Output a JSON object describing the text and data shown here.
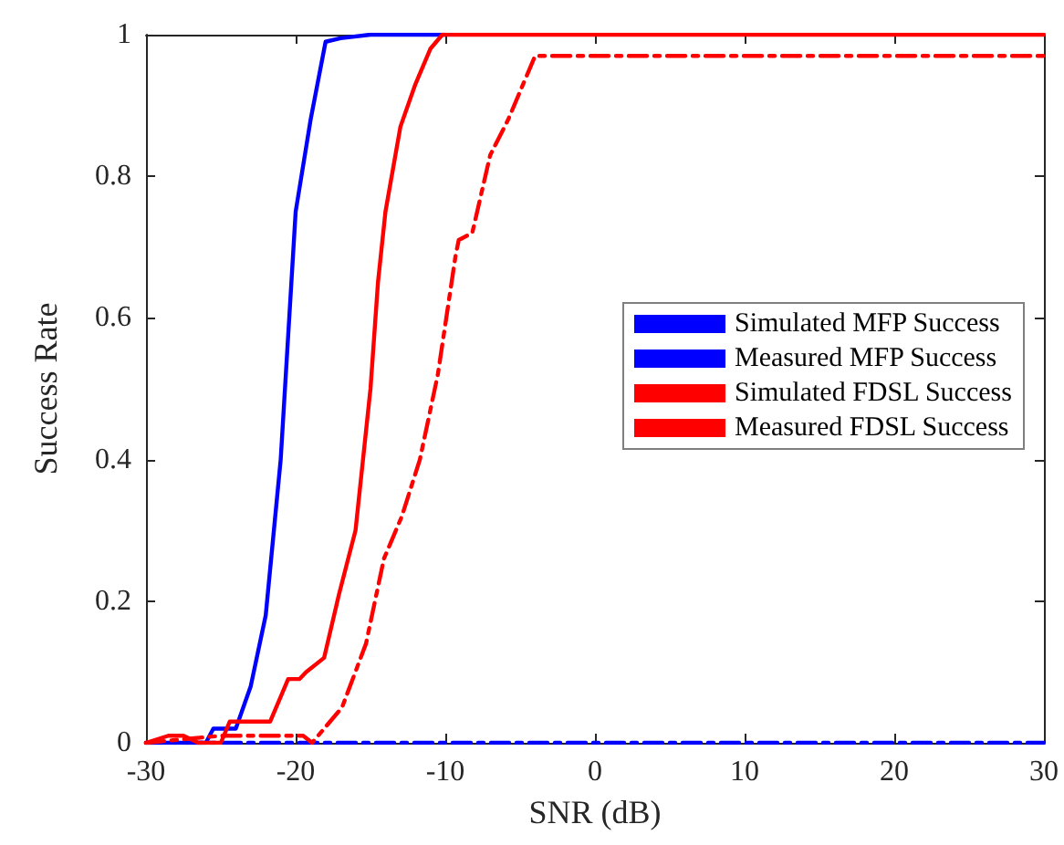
{
  "chart_data": {
    "type": "line",
    "xlabel": "SNR (dB)",
    "ylabel": "Success Rate",
    "xlim": [
      -30,
      30
    ],
    "ylim": [
      0,
      1
    ],
    "xticks": [
      -30,
      -20,
      -10,
      0,
      10,
      20,
      30
    ],
    "yticks": [
      0,
      0.2,
      0.4,
      0.6,
      0.8,
      1
    ],
    "grid": false,
    "legend": "right",
    "marker": "none",
    "series": [
      {
        "name": "Simulated MFP Success",
        "color": "#0000ff",
        "line_style": "solid",
        "x": [
          -30,
          -26,
          -25.5,
          -24,
          -23,
          -22,
          -21,
          -20,
          -19,
          -18,
          -17,
          -15,
          -10
        ],
        "values": [
          0,
          0,
          0.02,
          0.02,
          0.08,
          0.18,
          0.4,
          0.75,
          0.88,
          0.99,
          0.995,
          1,
          1
        ]
      },
      {
        "name": "Measured MFP Success",
        "color": "#0000ff",
        "line_style": "dashed",
        "x": [
          -30,
          30
        ],
        "values": [
          0,
          0
        ]
      },
      {
        "name": "Simulated FDSL Success",
        "color": "#ff0000",
        "line_style": "solid",
        "x": [
          -30,
          -28.5,
          -27.5,
          -26.5,
          -25,
          -24.4,
          -21.7,
          -20.5,
          -19.75,
          -19.3,
          -18.1,
          -17.1,
          -16,
          -15,
          -14.5,
          -14,
          -13,
          -12,
          -11,
          -10.2,
          30
        ],
        "values": [
          0,
          0.01,
          0.01,
          0,
          0,
          0.03,
          0.03,
          0.09,
          0.09,
          0.1,
          0.12,
          0.21,
          0.3,
          0.5,
          0.65,
          0.75,
          0.87,
          0.93,
          0.98,
          1,
          1
        ]
      },
      {
        "name": "Measured FDSL Success",
        "color": "#ff0000",
        "line_style": "dashed",
        "x": [
          -30,
          -25,
          -19.5,
          -18.9,
          -16.9,
          -15.3,
          -14.1,
          -12.9,
          -11.7,
          -10.5,
          -9.3,
          -9.1,
          -8.2,
          -7,
          -5.8,
          -4,
          30
        ],
        "values": [
          0,
          0.01,
          0.01,
          0,
          0.05,
          0.14,
          0.26,
          0.32,
          0.4,
          0.52,
          0.69,
          0.71,
          0.72,
          0.83,
          0.88,
          0.97,
          0.97
        ]
      }
    ]
  }
}
